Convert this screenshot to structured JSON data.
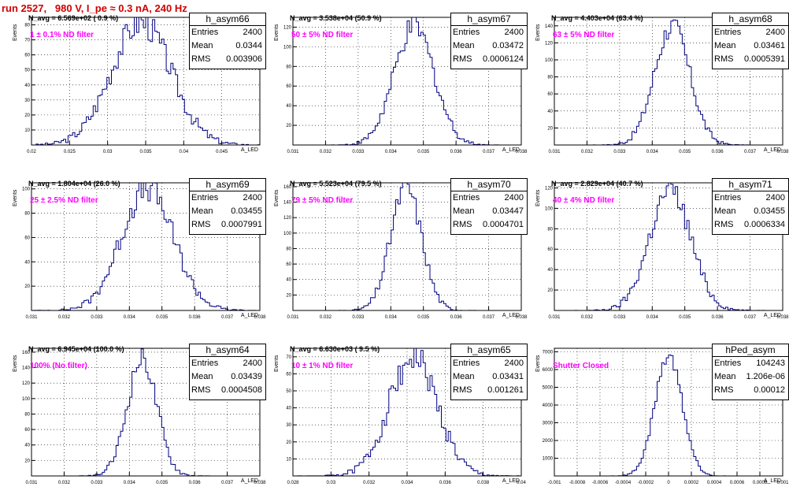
{
  "canvas_title": "run 2527,   980 V, I_pe ≈ 0.3 nA, 240 Hz",
  "chart_data": [
    {
      "type": "histogram",
      "name": "h_asym66",
      "entries": "2400",
      "mean": "0.0344",
      "rms": "0.003906",
      "n_avg": "N_avg = 6.569e+02 ( 0.9 %)",
      "filter": "1 ± 0.1% ND filter",
      "xlim": [
        0.02,
        0.05
      ],
      "ylim": [
        0,
        85
      ],
      "xticks": [
        "0.02",
        "0.025",
        "0.03",
        "0.035",
        "0.04",
        "0.045"
      ],
      "yticks": [
        "10",
        "20",
        "30",
        "40",
        "50",
        "60",
        "70",
        "80"
      ],
      "peak": 82,
      "ylabel": "Events",
      "xlabel": "A_LED"
    },
    {
      "type": "histogram",
      "name": "h_asym67",
      "entries": "2400",
      "mean": "0.03472",
      "rms": "0.0006124",
      "n_avg": "N_avg = 3.538e+04 (50.9 %)",
      "filter": "50 ± 5% ND filter",
      "xlim": [
        0.031,
        0.038
      ],
      "ylim": [
        0,
        130
      ],
      "xticks": [
        "0.031",
        "0.032",
        "0.033",
        "0.034",
        "0.035",
        "0.036",
        "0.037",
        "0.038"
      ],
      "yticks": [
        "20",
        "40",
        "60",
        "80",
        "100",
        "120"
      ],
      "peak": 120,
      "ylabel": "Events",
      "xlabel": "A_LED"
    },
    {
      "type": "histogram",
      "name": "h_asym68",
      "entries": "2400",
      "mean": "0.03461",
      "rms": "0.0005391",
      "n_avg": "N_avg = 4.403e+04 (63.4 %)",
      "filter": "63 ± 5% ND filter",
      "xlim": [
        0.031,
        0.038
      ],
      "ylim": [
        0,
        150
      ],
      "xticks": [
        "0.031",
        "0.032",
        "0.033",
        "0.034",
        "0.035",
        "0.036",
        "0.037",
        "0.038"
      ],
      "yticks": [
        "20",
        "40",
        "60",
        "80",
        "100",
        "120",
        "140"
      ],
      "peak": 140,
      "ylabel": "Events",
      "xlabel": "A_LED"
    },
    {
      "type": "histogram",
      "name": "h_asym69",
      "entries": "2400",
      "mean": "0.03455",
      "rms": "0.0007991",
      "n_avg": "N_avg = 1.804e+04 (26.0 %)",
      "filter": "25 ± 2.5% ND filter",
      "xlim": [
        0.031,
        0.038
      ],
      "ylim": [
        0,
        105
      ],
      "xticks": [
        "0.031",
        "0.032",
        "0.033",
        "0.034",
        "0.035",
        "0.036",
        "0.037",
        "0.038"
      ],
      "yticks": [
        "20",
        "40",
        "60",
        "80",
        "100"
      ],
      "peak": 100,
      "ylabel": "Events",
      "xlabel": "A_LED"
    },
    {
      "type": "histogram",
      "name": "h_asym70",
      "entries": "2400",
      "mean": "0.03447",
      "rms": "0.0004701",
      "n_avg": "N_avg = 5.523e+04 (79.5 %)",
      "filter": "79 ± 5% ND filter",
      "xlim": [
        0.031,
        0.038
      ],
      "ylim": [
        0,
        165
      ],
      "xticks": [
        "0.031",
        "0.032",
        "0.033",
        "0.034",
        "0.035",
        "0.036",
        "0.037",
        "0.038"
      ],
      "yticks": [
        "20",
        "40",
        "60",
        "80",
        "100",
        "120",
        "140",
        "160"
      ],
      "peak": 160,
      "ylabel": "Events",
      "xlabel": "A_LED"
    },
    {
      "type": "histogram",
      "name": "h_asym71",
      "entries": "2400",
      "mean": "0.03455",
      "rms": "0.0006334",
      "n_avg": "N_avg = 2.829e+04 (40.7 %)",
      "filter": "40 ± 4% ND filter",
      "xlim": [
        0.031,
        0.038
      ],
      "ylim": [
        0,
        125
      ],
      "xticks": [
        "0.031",
        "0.032",
        "0.033",
        "0.034",
        "0.035",
        "0.036",
        "0.037",
        "0.038"
      ],
      "yticks": [
        "20",
        "40",
        "60",
        "80",
        "100",
        "120"
      ],
      "peak": 118,
      "ylabel": "Events",
      "xlabel": "A_LED"
    },
    {
      "type": "histogram",
      "name": "h_asym64",
      "entries": "2400",
      "mean": "0.03439",
      "rms": "0.0004508",
      "n_avg": "N_avg = 6.945e+04 (100.0 %)",
      "filter": "100% (No filter)",
      "xlim": [
        0.031,
        0.038
      ],
      "ylim": [
        0,
        165
      ],
      "xticks": [
        "0.031",
        "0.032",
        "0.033",
        "0.034",
        "0.035",
        "0.036",
        "0.037",
        "0.038"
      ],
      "yticks": [
        "20",
        "40",
        "60",
        "80",
        "100",
        "120",
        "140",
        "160"
      ],
      "peak": 152,
      "ylabel": "Events",
      "xlabel": "A_LED"
    },
    {
      "type": "histogram",
      "name": "h_asym65",
      "entries": "2400",
      "mean": "0.03431",
      "rms": "0.001261",
      "n_avg": "N_avg = 6.630e+03 ( 9.5 %)",
      "filter": "10 ± 1% ND filter",
      "xlim": [
        0.028,
        0.04
      ],
      "ylim": [
        0,
        75
      ],
      "xticks": [
        "0.028",
        "0.03",
        "0.032",
        "0.034",
        "0.036",
        "0.038",
        "0.04"
      ],
      "yticks": [
        "10",
        "20",
        "30",
        "40",
        "50",
        "60",
        "70"
      ],
      "peak": 70,
      "ylabel": "Events",
      "xlabel": "A_LED"
    },
    {
      "type": "histogram",
      "name": "hPed_asym",
      "entries": "104243",
      "mean": "1.206e-06",
      "rms": "0.00012",
      "n_avg": "",
      "filter": "Shutter Closed",
      "xlim": [
        -0.001,
        0.001
      ],
      "ylim": [
        0,
        7200
      ],
      "xticks": [
        "-0.001",
        "-0.0008",
        "-0.0006",
        "-0.0004",
        "-0.0002",
        "0",
        "0.0002",
        "0.0004",
        "0.0006",
        "0.0008",
        "0.001"
      ],
      "yticks": [
        "1000",
        "2000",
        "3000",
        "4000",
        "5000",
        "6000",
        "7000"
      ],
      "peak": 6800,
      "ylabel": "Events",
      "xlabel": "A_LED"
    }
  ]
}
